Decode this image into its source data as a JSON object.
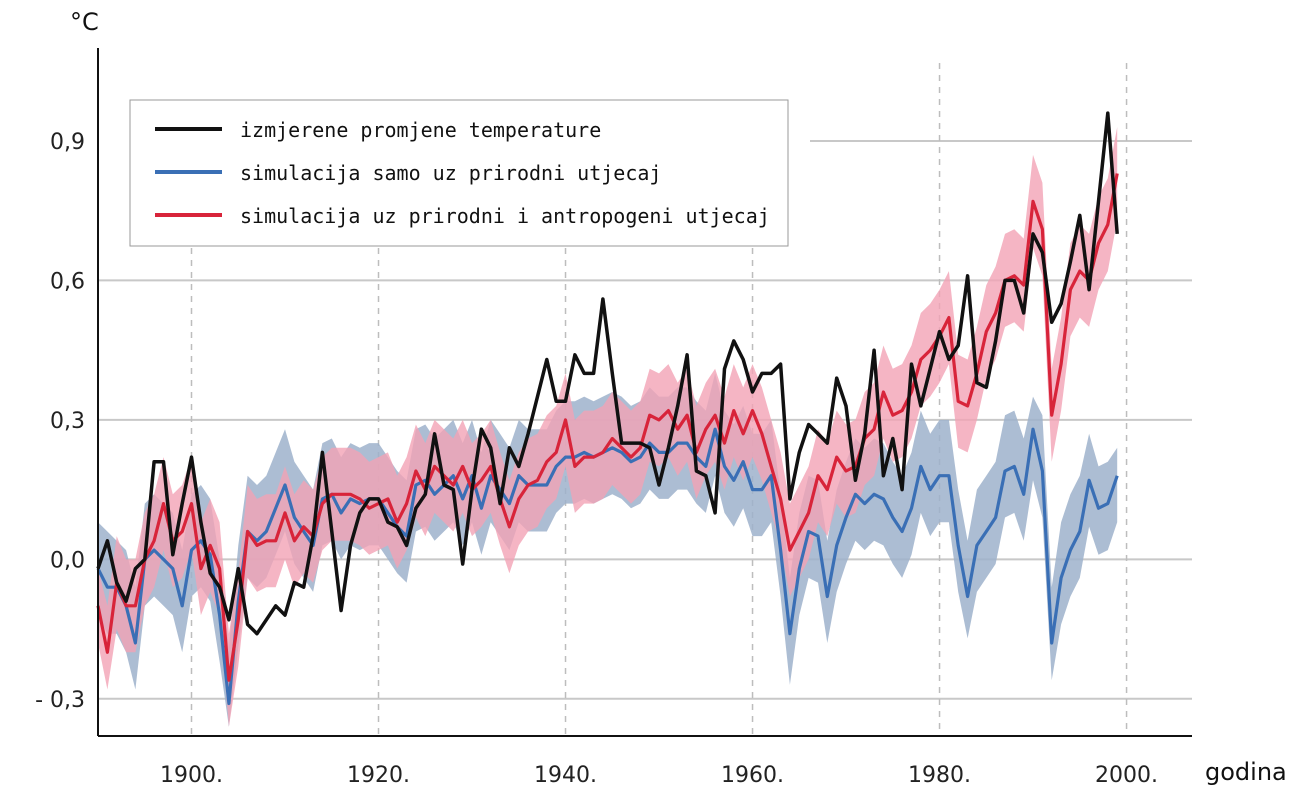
{
  "chart_data": {
    "type": "line",
    "title": "",
    "ylabel": "°C",
    "xlabel": "godina",
    "xlim": [
      1890,
      2007
    ],
    "ylim": [
      -0.38,
      1.1
    ],
    "x_ticks": [
      1900,
      1920,
      1940,
      1960,
      1980,
      2000
    ],
    "x_tick_labels": [
      "1900.",
      "1920.",
      "1940.",
      "1960.",
      "1980.",
      "2000."
    ],
    "y_ticks": [
      -0.3,
      0.0,
      0.3,
      0.6,
      0.9
    ],
    "y_tick_labels": [
      "- 0,3",
      "0,0",
      "0,3",
      "0,6",
      "0,9"
    ],
    "legend": {
      "position": "top-left",
      "entries": [
        {
          "label": "izmjerene promjene temperature",
          "color": "#111111"
        },
        {
          "label": "simulacija samo uz prirodni utjecaj",
          "color": "#3a6fb5"
        },
        {
          "label": "simulacija uz prirodni i antropogeni utjecaj",
          "color": "#d8243a"
        }
      ]
    },
    "x": [
      1890,
      1891,
      1892,
      1893,
      1894,
      1895,
      1896,
      1897,
      1898,
      1899,
      1900,
      1901,
      1902,
      1903,
      1904,
      1905,
      1906,
      1907,
      1908,
      1909,
      1910,
      1911,
      1912,
      1913,
      1914,
      1915,
      1916,
      1917,
      1918,
      1919,
      1920,
      1921,
      1922,
      1923,
      1924,
      1925,
      1926,
      1927,
      1928,
      1929,
      1930,
      1931,
      1932,
      1933,
      1934,
      1935,
      1936,
      1937,
      1938,
      1939,
      1940,
      1941,
      1942,
      1943,
      1944,
      1945,
      1946,
      1947,
      1948,
      1949,
      1950,
      1951,
      1952,
      1953,
      1954,
      1955,
      1956,
      1957,
      1958,
      1959,
      1960,
      1961,
      1962,
      1963,
      1964,
      1965,
      1966,
      1967,
      1968,
      1969,
      1970,
      1971,
      1972,
      1973,
      1974,
      1975,
      1976,
      1977,
      1978,
      1979,
      1980,
      1981,
      1982,
      1983,
      1984,
      1985,
      1986,
      1987,
      1988,
      1989,
      1990,
      1991,
      1992,
      1993,
      1994,
      1995,
      1996,
      1997,
      1998,
      1999
    ],
    "series": [
      {
        "name": "izmjerene promjene temperature",
        "color": "#111111",
        "values": [
          -0.02,
          0.04,
          -0.05,
          -0.09,
          -0.02,
          0.0,
          0.21,
          0.21,
          0.01,
          0.12,
          0.22,
          0.08,
          -0.03,
          -0.06,
          -0.13,
          -0.02,
          -0.14,
          -0.16,
          -0.13,
          -0.1,
          -0.12,
          -0.05,
          -0.06,
          0.05,
          0.23,
          0.06,
          -0.11,
          0.03,
          0.1,
          0.13,
          0.13,
          0.08,
          0.07,
          0.03,
          0.11,
          0.14,
          0.27,
          0.16,
          0.15,
          -0.01,
          0.15,
          0.28,
          0.24,
          0.12,
          0.24,
          0.2,
          0.27,
          0.35,
          0.43,
          0.34,
          0.34,
          0.44,
          0.4,
          0.4,
          0.56,
          0.4,
          0.25,
          0.25,
          0.25,
          0.24,
          0.16,
          0.24,
          0.33,
          0.44,
          0.19,
          0.18,
          0.1,
          0.41,
          0.47,
          0.43,
          0.36,
          0.4,
          0.4,
          0.42,
          0.13,
          0.23,
          0.29,
          0.27,
          0.25,
          0.39,
          0.33,
          0.17,
          0.27,
          0.45,
          0.18,
          0.26,
          0.15,
          0.42,
          0.33,
          0.41,
          0.49,
          0.43,
          0.46,
          0.61,
          0.38,
          0.37,
          0.47,
          0.6,
          0.6,
          0.53,
          0.7,
          0.66,
          0.51,
          0.55,
          0.64,
          0.74,
          0.58,
          0.77,
          0.96,
          0.7
        ]
      },
      {
        "name": "simulacija samo uz prirodni utjecaj",
        "color": "#3a6fb5",
        "band_color": "#9eb1cb",
        "values": [
          -0.02,
          -0.06,
          -0.06,
          -0.1,
          -0.18,
          0.0,
          0.02,
          0.0,
          -0.02,
          -0.1,
          0.02,
          0.04,
          0.01,
          -0.12,
          -0.31,
          -0.09,
          0.06,
          0.04,
          0.06,
          0.11,
          0.16,
          0.09,
          0.06,
          0.03,
          0.13,
          0.14,
          0.1,
          0.13,
          0.12,
          0.13,
          0.13,
          0.1,
          0.07,
          0.05,
          0.16,
          0.17,
          0.14,
          0.16,
          0.18,
          0.13,
          0.18,
          0.11,
          0.18,
          0.15,
          0.12,
          0.18,
          0.16,
          0.16,
          0.16,
          0.2,
          0.22,
          0.22,
          0.23,
          0.22,
          0.23,
          0.24,
          0.23,
          0.21,
          0.22,
          0.25,
          0.23,
          0.23,
          0.25,
          0.25,
          0.22,
          0.2,
          0.28,
          0.2,
          0.17,
          0.21,
          0.15,
          0.15,
          0.18,
          0.02,
          -0.16,
          -0.02,
          0.06,
          0.05,
          -0.08,
          0.03,
          0.09,
          0.14,
          0.12,
          0.14,
          0.13,
          0.09,
          0.06,
          0.11,
          0.2,
          0.15,
          0.18,
          0.18,
          0.03,
          -0.08,
          0.03,
          0.06,
          0.09,
          0.19,
          0.2,
          0.14,
          0.28,
          0.19,
          -0.18,
          -0.04,
          0.02,
          0.06,
          0.17,
          0.11,
          0.12,
          0.18
        ],
        "band_upper": [
          0.08,
          0.06,
          0.04,
          0.02,
          -0.06,
          0.12,
          0.14,
          0.12,
          0.1,
          0.02,
          0.14,
          0.16,
          0.13,
          0.0,
          -0.19,
          0.03,
          0.18,
          0.16,
          0.18,
          0.23,
          0.28,
          0.21,
          0.18,
          0.15,
          0.25,
          0.26,
          0.22,
          0.25,
          0.24,
          0.25,
          0.25,
          0.22,
          0.19,
          0.17,
          0.28,
          0.29,
          0.26,
          0.28,
          0.3,
          0.25,
          0.3,
          0.23,
          0.3,
          0.27,
          0.24,
          0.3,
          0.28,
          0.28,
          0.28,
          0.32,
          0.34,
          0.34,
          0.35,
          0.34,
          0.35,
          0.36,
          0.35,
          0.33,
          0.34,
          0.37,
          0.35,
          0.35,
          0.37,
          0.37,
          0.34,
          0.32,
          0.4,
          0.32,
          0.29,
          0.33,
          0.27,
          0.27,
          0.3,
          0.14,
          -0.04,
          0.1,
          0.18,
          0.17,
          0.04,
          0.15,
          0.21,
          0.26,
          0.24,
          0.26,
          0.25,
          0.21,
          0.18,
          0.23,
          0.32,
          0.27,
          0.3,
          0.3,
          0.15,
          0.04,
          0.15,
          0.18,
          0.21,
          0.31,
          0.32,
          0.26,
          0.35,
          0.31,
          -0.06,
          0.08,
          0.14,
          0.18,
          0.27,
          0.2,
          0.21,
          0.24
        ],
        "band_lower": [
          -0.12,
          -0.16,
          -0.16,
          -0.2,
          -0.28,
          -0.1,
          -0.08,
          -0.1,
          -0.12,
          -0.2,
          -0.08,
          -0.06,
          -0.09,
          -0.22,
          -0.36,
          -0.19,
          -0.04,
          -0.06,
          -0.04,
          0.01,
          0.06,
          -0.01,
          -0.04,
          -0.07,
          0.03,
          0.04,
          0.0,
          0.03,
          0.02,
          0.03,
          0.03,
          0.0,
          -0.03,
          -0.05,
          0.06,
          0.07,
          0.04,
          0.06,
          0.08,
          0.03,
          0.08,
          0.01,
          0.08,
          0.05,
          0.02,
          0.08,
          0.06,
          0.06,
          0.06,
          0.1,
          0.12,
          0.12,
          0.13,
          0.12,
          0.13,
          0.14,
          0.13,
          0.11,
          0.12,
          0.15,
          0.13,
          0.13,
          0.15,
          0.15,
          0.12,
          0.1,
          0.18,
          0.1,
          0.07,
          0.11,
          0.05,
          0.05,
          0.08,
          -0.08,
          -0.27,
          -0.12,
          -0.04,
          -0.05,
          -0.18,
          -0.07,
          -0.01,
          0.04,
          0.02,
          0.04,
          0.03,
          -0.01,
          -0.04,
          0.01,
          0.1,
          0.05,
          0.08,
          0.08,
          -0.07,
          -0.17,
          -0.07,
          -0.04,
          -0.01,
          0.09,
          0.1,
          0.04,
          0.17,
          0.09,
          -0.26,
          -0.14,
          -0.08,
          -0.04,
          0.07,
          0.01,
          0.02,
          0.08
        ]
      },
      {
        "name": "simulacija uz prirodni i antropogeni utjecaj",
        "color": "#d8243a",
        "band_color": "#f2a3b5",
        "values": [
          -0.1,
          -0.2,
          -0.05,
          -0.1,
          -0.1,
          0.0,
          0.04,
          0.12,
          0.04,
          0.06,
          0.12,
          -0.02,
          0.03,
          -0.02,
          -0.26,
          -0.13,
          0.06,
          0.03,
          0.04,
          0.04,
          0.1,
          0.04,
          0.07,
          0.05,
          0.12,
          0.14,
          0.14,
          0.14,
          0.13,
          0.11,
          0.12,
          0.13,
          0.08,
          0.12,
          0.19,
          0.15,
          0.2,
          0.18,
          0.16,
          0.2,
          0.15,
          0.17,
          0.2,
          0.13,
          0.07,
          0.13,
          0.16,
          0.17,
          0.21,
          0.23,
          0.3,
          0.2,
          0.22,
          0.22,
          0.23,
          0.26,
          0.24,
          0.22,
          0.24,
          0.31,
          0.3,
          0.32,
          0.28,
          0.31,
          0.23,
          0.28,
          0.31,
          0.25,
          0.32,
          0.27,
          0.32,
          0.27,
          0.2,
          0.13,
          0.02,
          0.06,
          0.1,
          0.18,
          0.15,
          0.22,
          0.19,
          0.2,
          0.26,
          0.28,
          0.36,
          0.31,
          0.32,
          0.36,
          0.43,
          0.45,
          0.48,
          0.52,
          0.34,
          0.33,
          0.4,
          0.49,
          0.53,
          0.6,
          0.61,
          0.59,
          0.77,
          0.71,
          0.31,
          0.42,
          0.58,
          0.62,
          0.6,
          0.68,
          0.72,
          0.83
        ],
        "band_upper": [
          -0.02,
          -0.1,
          0.05,
          0.0,
          0.0,
          0.1,
          0.14,
          0.22,
          0.14,
          0.16,
          0.22,
          0.08,
          0.13,
          0.08,
          -0.16,
          -0.03,
          0.16,
          0.13,
          0.14,
          0.14,
          0.2,
          0.14,
          0.17,
          0.15,
          0.22,
          0.24,
          0.24,
          0.24,
          0.23,
          0.21,
          0.22,
          0.23,
          0.18,
          0.22,
          0.29,
          0.25,
          0.3,
          0.28,
          0.26,
          0.3,
          0.25,
          0.27,
          0.3,
          0.23,
          0.17,
          0.23,
          0.26,
          0.27,
          0.31,
          0.33,
          0.4,
          0.3,
          0.32,
          0.32,
          0.33,
          0.36,
          0.34,
          0.32,
          0.34,
          0.41,
          0.4,
          0.42,
          0.38,
          0.41,
          0.33,
          0.38,
          0.41,
          0.35,
          0.42,
          0.37,
          0.42,
          0.37,
          0.3,
          0.23,
          0.12,
          0.16,
          0.2,
          0.28,
          0.25,
          0.32,
          0.29,
          0.3,
          0.36,
          0.38,
          0.46,
          0.41,
          0.42,
          0.46,
          0.53,
          0.55,
          0.58,
          0.62,
          0.44,
          0.43,
          0.5,
          0.59,
          0.63,
          0.7,
          0.71,
          0.69,
          0.87,
          0.81,
          0.41,
          0.52,
          0.68,
          0.72,
          0.7,
          0.78,
          0.82,
          0.93
        ],
        "band_lower": [
          -0.18,
          -0.28,
          -0.15,
          -0.2,
          -0.2,
          -0.1,
          -0.06,
          0.02,
          -0.06,
          -0.04,
          0.02,
          -0.12,
          -0.07,
          -0.12,
          -0.36,
          -0.23,
          -0.04,
          -0.07,
          -0.06,
          -0.06,
          0.0,
          -0.06,
          -0.03,
          -0.05,
          0.02,
          0.04,
          0.04,
          0.04,
          0.03,
          0.01,
          0.02,
          0.03,
          -0.02,
          0.02,
          0.09,
          0.05,
          0.1,
          0.08,
          0.06,
          0.1,
          0.05,
          0.07,
          0.1,
          0.03,
          -0.03,
          0.03,
          0.06,
          0.07,
          0.11,
          0.13,
          0.2,
          0.1,
          0.12,
          0.12,
          0.13,
          0.16,
          0.14,
          0.12,
          0.14,
          0.21,
          0.2,
          0.22,
          0.18,
          0.21,
          0.13,
          0.18,
          0.21,
          0.15,
          0.22,
          0.17,
          0.22,
          0.17,
          0.1,
          0.03,
          -0.08,
          -0.04,
          0.0,
          0.08,
          0.05,
          0.12,
          0.09,
          0.1,
          0.16,
          0.18,
          0.26,
          0.21,
          0.22,
          0.26,
          0.33,
          0.35,
          0.38,
          0.42,
          0.24,
          0.23,
          0.3,
          0.39,
          0.43,
          0.5,
          0.51,
          0.49,
          0.67,
          0.61,
          0.21,
          0.32,
          0.48,
          0.52,
          0.5,
          0.58,
          0.62,
          0.73
        ]
      }
    ]
  }
}
